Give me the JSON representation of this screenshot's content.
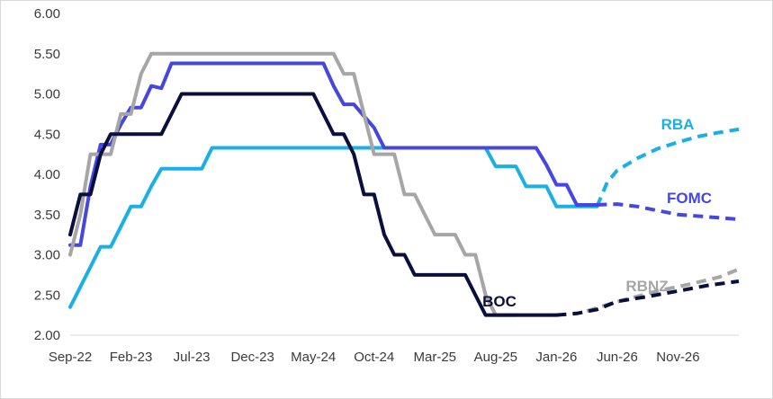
{
  "chart_data": {
    "type": "line",
    "title": "",
    "xlabel": "",
    "ylabel": "",
    "ylim": [
      2.0,
      6.0
    ],
    "grid": false,
    "legend": "none (series labels drawn next to lines)",
    "x_ticks": [
      "Sep-22",
      "Feb-23",
      "Jul-23",
      "Dec-23",
      "May-24",
      "Oct-24",
      "Mar-25",
      "Aug-25",
      "Jan-26",
      "Jun-26",
      "Nov-26"
    ],
    "y_ticks": [
      "6.00",
      "5.50",
      "5.00",
      "4.50",
      "4.00",
      "3.50",
      "3.00",
      "2.50",
      "2.00"
    ],
    "x_unit": "months since Sep-22",
    "series": [
      {
        "name": "RBA",
        "label": "RBA",
        "color": "#1ab0e6",
        "points": [
          [
            0,
            2.35
          ],
          [
            3,
            3.1
          ],
          [
            4,
            3.1
          ],
          [
            5,
            3.35
          ],
          [
            6,
            3.6
          ],
          [
            7,
            3.6
          ],
          [
            8,
            3.85
          ],
          [
            9,
            4.07
          ],
          [
            13,
            4.07
          ],
          [
            14,
            4.33
          ],
          [
            41,
            4.33
          ],
          [
            42,
            4.1
          ],
          [
            44,
            4.1
          ],
          [
            45,
            3.85
          ],
          [
            47,
            3.85
          ],
          [
            48,
            3.6
          ],
          [
            52,
            3.6
          ]
        ],
        "forecast": [
          [
            52,
            3.6
          ],
          [
            53,
            3.9
          ],
          [
            54,
            4.05
          ],
          [
            56,
            4.2
          ],
          [
            58,
            4.32
          ],
          [
            60,
            4.4
          ],
          [
            62,
            4.47
          ],
          [
            64,
            4.52
          ],
          [
            66,
            4.56
          ]
        ]
      },
      {
        "name": "FOMC",
        "label": "FOMC",
        "color": "#4646e0",
        "points": [
          [
            0,
            3.12
          ],
          [
            1,
            3.12
          ],
          [
            2,
            3.85
          ],
          [
            3,
            4.37
          ],
          [
            4,
            4.37
          ],
          [
            5,
            4.62
          ],
          [
            6,
            4.83
          ],
          [
            7,
            4.83
          ],
          [
            8,
            5.1
          ],
          [
            9,
            5.07
          ],
          [
            10,
            5.38
          ],
          [
            25,
            5.38
          ],
          [
            26,
            5.1
          ],
          [
            27,
            4.87
          ],
          [
            28,
            4.87
          ],
          [
            30,
            4.58
          ],
          [
            31,
            4.33
          ],
          [
            38,
            4.33
          ],
          [
            39,
            4.33
          ],
          [
            40,
            4.33
          ],
          [
            41,
            4.33
          ],
          [
            42,
            4.33
          ],
          [
            43,
            4.33
          ],
          [
            44,
            4.33
          ],
          [
            45,
            4.33
          ],
          [
            46,
            4.33
          ],
          [
            47,
            4.12
          ],
          [
            48,
            3.87
          ],
          [
            49,
            3.87
          ],
          [
            50,
            3.62
          ],
          [
            51,
            3.62
          ],
          [
            52,
            3.62
          ]
        ],
        "forecast": [
          [
            52,
            3.62
          ],
          [
            54,
            3.63
          ],
          [
            56,
            3.6
          ],
          [
            58,
            3.55
          ],
          [
            60,
            3.5
          ],
          [
            62,
            3.48
          ],
          [
            64,
            3.46
          ],
          [
            66,
            3.44
          ]
        ]
      },
      {
        "name": "RBNZ",
        "label": "RBNZ",
        "color": "#a6a6a6",
        "points": [
          [
            0,
            3.0
          ],
          [
            1,
            3.5
          ],
          [
            2,
            4.25
          ],
          [
            3,
            4.25
          ],
          [
            4,
            4.25
          ],
          [
            5,
            4.75
          ],
          [
            6,
            4.75
          ],
          [
            7,
            5.25
          ],
          [
            8,
            5.5
          ],
          [
            26,
            5.5
          ],
          [
            27,
            5.25
          ],
          [
            28,
            5.25
          ],
          [
            29,
            4.75
          ],
          [
            30,
            4.25
          ],
          [
            32,
            4.25
          ],
          [
            33,
            3.75
          ],
          [
            34,
            3.75
          ],
          [
            35,
            3.5
          ],
          [
            36,
            3.25
          ],
          [
            38,
            3.25
          ],
          [
            39,
            3.0
          ],
          [
            40,
            3.0
          ],
          [
            41,
            2.5
          ],
          [
            42,
            2.25
          ],
          [
            44,
            2.25
          ]
        ],
        "forecast": [
          [
            51,
            2.3
          ],
          [
            53,
            2.38
          ],
          [
            55,
            2.45
          ],
          [
            58,
            2.55
          ],
          [
            61,
            2.63
          ],
          [
            64,
            2.72
          ],
          [
            66,
            2.82
          ]
        ]
      },
      {
        "name": "BOC",
        "label": "BOC",
        "color": "#0a0f3d",
        "points": [
          [
            0,
            3.25
          ],
          [
            1,
            3.75
          ],
          [
            2,
            3.75
          ],
          [
            3,
            4.25
          ],
          [
            4,
            4.5
          ],
          [
            9,
            4.5
          ],
          [
            11,
            5.0
          ],
          [
            24,
            5.0
          ],
          [
            26,
            4.5
          ],
          [
            27,
            4.5
          ],
          [
            28,
            4.25
          ],
          [
            29,
            3.75
          ],
          [
            30,
            3.75
          ],
          [
            31,
            3.25
          ],
          [
            32,
            3.0
          ],
          [
            33,
            3.0
          ],
          [
            34,
            2.75
          ],
          [
            39,
            2.75
          ],
          [
            41,
            2.25
          ],
          [
            48,
            2.25
          ]
        ],
        "forecast": [
          [
            48,
            2.25
          ],
          [
            50,
            2.27
          ],
          [
            52,
            2.32
          ],
          [
            54,
            2.42
          ],
          [
            57,
            2.48
          ],
          [
            60,
            2.55
          ],
          [
            63,
            2.62
          ],
          [
            66,
            2.67
          ]
        ]
      }
    ]
  }
}
